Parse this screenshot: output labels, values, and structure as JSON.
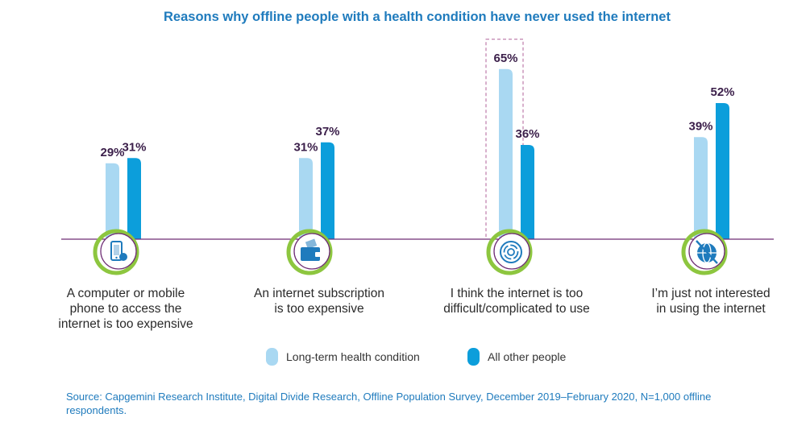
{
  "chart_data": {
    "type": "bar",
    "title": "Reasons why offline people with a health condition have never used the internet",
    "categories": [
      "A computer or mobile\nphone to access the\ninternet is too expensive",
      "An internet subscription\nis too expensive",
      "I think the internet is too\ndifficult/complicated to use",
      "I’m just not interested\nin using the internet"
    ],
    "category_icons": [
      "mobile-phone-icon",
      "wallet-icon",
      "maze-icon",
      "crossed-globe-icon"
    ],
    "series": [
      {
        "name": "Long-term health condition",
        "values": [
          29,
          31,
          65,
          39
        ],
        "labels": [
          "29%",
          "31%",
          "65%",
          "39%"
        ],
        "color": "#a9d8f2"
      },
      {
        "name": "All other people",
        "values": [
          31,
          37,
          36,
          52
        ],
        "labels": [
          "31%",
          "37%",
          "36%",
          "52%"
        ],
        "color": "#0c9edb"
      }
    ],
    "highlight": {
      "category_index": 2,
      "series_index": 0
    },
    "unit": "%",
    "ylim": [
      0,
      70
    ],
    "xlabel": "",
    "ylabel": "",
    "legend_position": "bottom-center"
  },
  "colors": {
    "title": "#1f7bbd",
    "axis": "#6e2c74",
    "value_label": "#3b1f4a",
    "ring": "#8dc63f",
    "icon": "#1f7bbd",
    "highlight_box": "#b0629a"
  },
  "source": "Source: Capgemini Research Institute, Digital Divide Research, Offline Population Survey, December 2019–February 2020, N=1,000 offline respondents."
}
